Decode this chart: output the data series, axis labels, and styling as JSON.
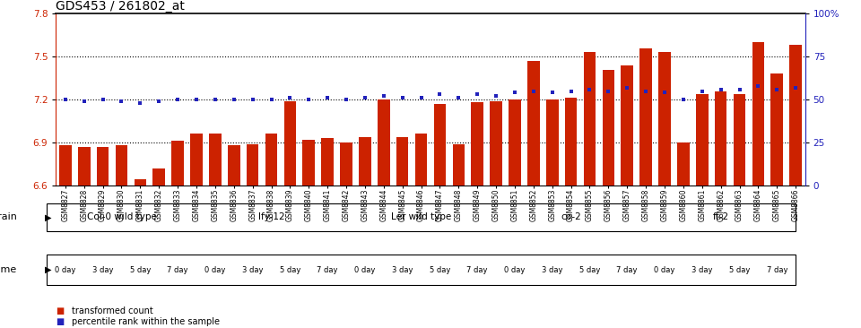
{
  "title": "GDS453 / 261802_at",
  "samples": [
    "GSM8827",
    "GSM8828",
    "GSM8829",
    "GSM8830",
    "GSM8831",
    "GSM8832",
    "GSM8833",
    "GSM8834",
    "GSM8835",
    "GSM8836",
    "GSM8837",
    "GSM8838",
    "GSM8839",
    "GSM8840",
    "GSM8841",
    "GSM8842",
    "GSM8843",
    "GSM8844",
    "GSM8845",
    "GSM8846",
    "GSM8847",
    "GSM8848",
    "GSM8849",
    "GSM8850",
    "GSM8851",
    "GSM8852",
    "GSM8853",
    "GSM8854",
    "GSM8855",
    "GSM8856",
    "GSM8857",
    "GSM8858",
    "GSM8859",
    "GSM8860",
    "GSM8861",
    "GSM8862",
    "GSM8863",
    "GSM8864",
    "GSM8865",
    "GSM8866"
  ],
  "bar_values": [
    6.88,
    6.87,
    6.87,
    6.88,
    6.64,
    6.72,
    6.91,
    6.96,
    6.96,
    6.88,
    6.89,
    6.96,
    7.19,
    6.92,
    6.93,
    6.9,
    6.94,
    7.2,
    6.94,
    6.96,
    7.17,
    6.89,
    7.18,
    7.19,
    7.2,
    7.47,
    7.2,
    7.21,
    7.53,
    7.41,
    7.44,
    7.56,
    7.53,
    6.9,
    7.24,
    7.26,
    7.24,
    7.6,
    7.38,
    7.58
  ],
  "percentile_values": [
    50,
    49,
    50,
    49,
    48,
    49,
    50,
    50,
    50,
    50,
    50,
    50,
    51,
    50,
    51,
    50,
    51,
    52,
    51,
    51,
    53,
    51,
    53,
    52,
    54,
    55,
    54,
    55,
    56,
    55,
    57,
    55,
    54,
    50,
    55,
    56,
    56,
    58,
    56,
    57
  ],
  "ylim_left": [
    6.6,
    7.8
  ],
  "ylim_right": [
    0,
    100
  ],
  "yticks_left": [
    6.6,
    6.9,
    7.2,
    7.5,
    7.8
  ],
  "yticks_right": [
    0,
    25,
    50,
    75,
    100
  ],
  "ytick_labels_right": [
    "0",
    "25",
    "50",
    "75",
    "100%"
  ],
  "bar_color": "#cc2200",
  "dot_color": "#2222bb",
  "dot_size": 12,
  "strain_groups": [
    {
      "label": "Col-0 wild type",
      "start": 0,
      "end": 7,
      "color": "#ccffcc"
    },
    {
      "label": "lfy-12",
      "start": 8,
      "end": 15,
      "color": "#ccffcc"
    },
    {
      "label": "Ler wild type",
      "start": 16,
      "end": 23,
      "color": "#ccffcc"
    },
    {
      "label": "co-2",
      "start": 24,
      "end": 31,
      "color": "#66ee66"
    },
    {
      "label": "ft-2",
      "start": 32,
      "end": 39,
      "color": "#66ee66"
    }
  ],
  "time_groups": [
    {
      "label": "0 day",
      "color": "#ffffff"
    },
    {
      "label": "3 day",
      "color": "#ffaaff"
    },
    {
      "label": "5 day",
      "color": "#ee66ee"
    },
    {
      "label": "7 day",
      "color": "#cc33cc"
    }
  ],
  "legend_items": [
    {
      "label": "transformed count",
      "color": "#cc2200"
    },
    {
      "label": "percentile rank within the sample",
      "color": "#2222bb"
    }
  ],
  "title_fontsize": 10,
  "axis_color_left": "#cc2200",
  "axis_color_right": "#2222bb",
  "hline_vals": [
    6.9,
    7.2,
    7.5
  ],
  "hline_color": "black",
  "hline_style": "dotted",
  "hline_lw": 0.8
}
